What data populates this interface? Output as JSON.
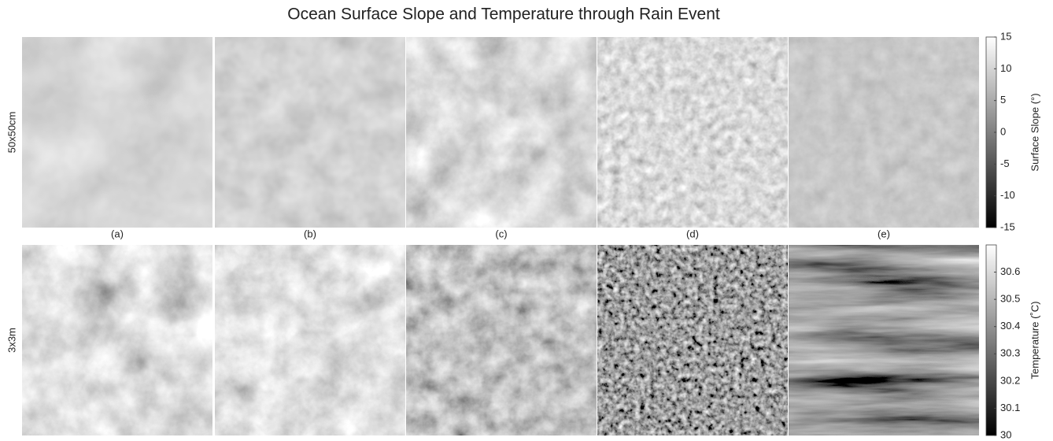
{
  "title": "Ocean Surface Slope and Temperature through Rain Event",
  "row_labels": [
    "50x50cm",
    "3x3m"
  ],
  "panel_labels": [
    "(a)",
    "(b)",
    "(c)",
    "(d)",
    "(e)"
  ],
  "colorbars": [
    {
      "label": "Surface Slope (°)",
      "lim": [
        -15,
        15
      ],
      "ticks": [
        -15,
        -10,
        -5,
        0,
        5,
        10,
        15
      ]
    },
    {
      "label": "Temperature (˚C)",
      "lim": [
        30,
        30.7
      ],
      "ticks": [
        30,
        30.1,
        30.2,
        30.3,
        30.4,
        30.5,
        30.6
      ]
    }
  ]
}
